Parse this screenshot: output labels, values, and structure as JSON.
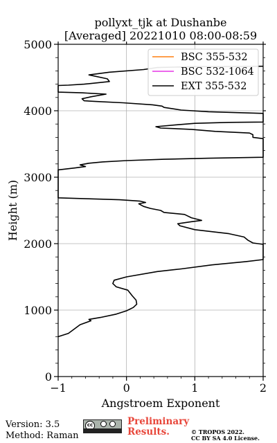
{
  "chart_data": {
    "type": "line",
    "title_line1": "pollyxt_tjk at Dushanbe",
    "title_line2": "[Averaged] 20221010 08:00-08:59",
    "xlabel": "Angstroem Exponent",
    "ylabel": "Height (m)",
    "xlim": [
      -1,
      2
    ],
    "ylim": [
      0,
      5000
    ],
    "x_ticks": [
      -1,
      0,
      1,
      2
    ],
    "x_tick_labels": [
      "−1",
      "0",
      "1",
      "2"
    ],
    "y_ticks": [
      0,
      1000,
      2000,
      3000,
      4000,
      5000
    ],
    "y_tick_labels": [
      "0",
      "1000",
      "2000",
      "3000",
      "4000",
      "5000"
    ],
    "grid": true,
    "legend_position": "top-right",
    "series": [
      {
        "name": "BSC 355-532",
        "color": "#ff7f0e",
        "points": []
      },
      {
        "name": "BSC 532-1064",
        "color": "#e535e5",
        "points": []
      },
      {
        "name": "EXT 355-532",
        "color": "#000000",
        "points": [
          [
            -1.0,
            600
          ],
          [
            -0.85,
            650
          ],
          [
            -0.68,
            780
          ],
          [
            -0.52,
            840
          ],
          [
            -0.55,
            860
          ],
          [
            -0.38,
            890
          ],
          [
            -0.15,
            940
          ],
          [
            0.0,
            990
          ],
          [
            0.1,
            1040
          ],
          [
            0.15,
            1090
          ],
          [
            0.14,
            1150
          ],
          [
            0.08,
            1220
          ],
          [
            0.02,
            1300
          ],
          [
            -0.15,
            1350
          ],
          [
            -0.2,
            1400
          ],
          [
            -0.18,
            1450
          ],
          [
            0.0,
            1500
          ],
          [
            0.45,
            1580
          ],
          [
            0.8,
            1620
          ],
          [
            1.25,
            1680
          ],
          [
            1.75,
            1730
          ],
          [
            2.0,
            1760
          ],
          [
            2.0,
            1990
          ],
          [
            1.85,
            2010
          ],
          [
            1.78,
            2050
          ],
          [
            1.72,
            2100
          ],
          [
            1.5,
            2150
          ],
          [
            1.25,
            2180
          ],
          [
            1.0,
            2210
          ],
          [
            0.78,
            2270
          ],
          [
            0.75,
            2300
          ],
          [
            0.95,
            2330
          ],
          [
            1.1,
            2350
          ],
          [
            0.95,
            2390
          ],
          [
            0.85,
            2440
          ],
          [
            0.55,
            2470
          ],
          [
            0.5,
            2500
          ],
          [
            0.35,
            2530
          ],
          [
            0.25,
            2560
          ],
          [
            0.18,
            2600
          ],
          [
            0.28,
            2620
          ],
          [
            0.2,
            2640
          ],
          [
            -0.1,
            2660
          ],
          [
            -0.55,
            2675
          ],
          [
            -1.0,
            2690
          ],
          [
            -1.0,
            3110
          ],
          [
            -0.75,
            3140
          ],
          [
            -0.6,
            3160
          ],
          [
            -0.68,
            3185
          ],
          [
            -0.55,
            3210
          ],
          [
            -0.35,
            3230
          ],
          [
            0.0,
            3250
          ],
          [
            0.55,
            3270
          ],
          [
            1.2,
            3285
          ],
          [
            2.0,
            3300
          ],
          [
            2.0,
            3580
          ],
          [
            1.85,
            3600
          ],
          [
            1.85,
            3640
          ],
          [
            1.8,
            3665
          ],
          [
            1.3,
            3690
          ],
          [
            0.95,
            3720
          ],
          [
            0.5,
            3740
          ],
          [
            0.43,
            3760
          ],
          [
            0.75,
            3790
          ],
          [
            1.0,
            3810
          ],
          [
            1.5,
            3825
          ],
          [
            2.0,
            3830
          ],
          [
            2.0,
            3960
          ],
          [
            1.7,
            3970
          ],
          [
            1.2,
            3985
          ],
          [
            0.8,
            4010
          ],
          [
            0.55,
            4050
          ],
          [
            0.52,
            4070
          ],
          [
            0.38,
            4090
          ],
          [
            -0.05,
            4120
          ],
          [
            -0.45,
            4140
          ],
          [
            -0.62,
            4150
          ],
          [
            -0.65,
            4180
          ],
          [
            -0.52,
            4210
          ],
          [
            -0.3,
            4250
          ],
          [
            -0.65,
            4270
          ],
          [
            -1.0,
            4280
          ],
          [
            -1.0,
            4380
          ],
          [
            -0.85,
            4385
          ],
          [
            -0.62,
            4400
          ],
          [
            -0.25,
            4440
          ],
          [
            -0.28,
            4480
          ],
          [
            -0.55,
            4540
          ],
          [
            -0.25,
            4580
          ],
          [
            0.25,
            4620
          ],
          [
            0.45,
            4650
          ],
          [
            1.0,
            4665
          ],
          [
            1.4,
            4665
          ],
          [
            2.0,
            4670
          ]
        ]
      }
    ]
  },
  "footer": {
    "version": "Version: 3.5",
    "method": "Method: Raman",
    "preliminary_line1": "Preliminary",
    "preliminary_line2": "Results.",
    "copyright_line1": "© TROPOS 2022.",
    "copyright_line2": "CC BY SA 4.0 License."
  },
  "license_badge": {
    "icon": "cc-by-sa-icon",
    "label": "BY SA"
  }
}
